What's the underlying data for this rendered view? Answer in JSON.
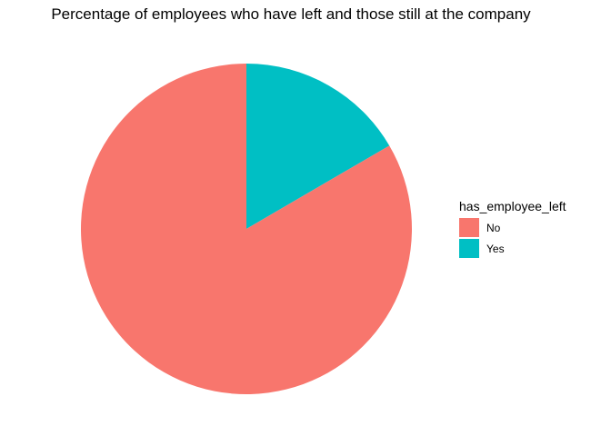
{
  "chart_data": {
    "type": "pie",
    "title": "Percentage of employees who have left and those still at the company",
    "legend_title": "has_employee_left",
    "legend_position": "right",
    "categories": [
      "No",
      "Yes"
    ],
    "values": [
      0.834,
      0.166
    ],
    "colors": [
      "#F8766D",
      "#00BFC4"
    ]
  }
}
